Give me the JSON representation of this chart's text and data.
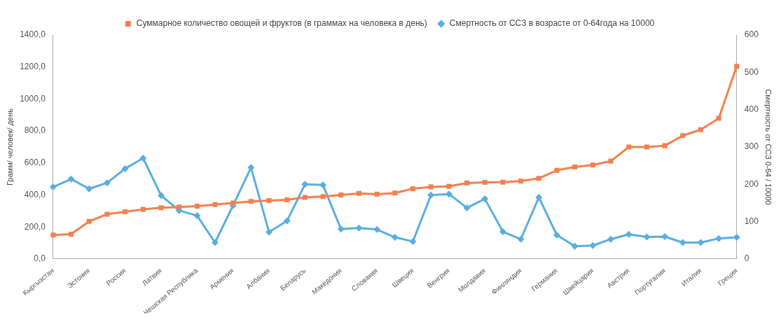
{
  "chart_data": {
    "type": "line",
    "categories": [
      "Кыргызстан",
      null,
      "Эстония",
      null,
      "Россия",
      null,
      "Латвия",
      null,
      "Чешская Республика",
      null,
      "Армения",
      null,
      "Албания",
      null,
      "Беларусь",
      null,
      "Македония",
      null,
      "Словакия",
      null,
      "Швеция",
      null,
      "Венгрия",
      null,
      "Молдавия",
      null,
      "Финляндия",
      null,
      "Германия",
      null,
      "Швейцария",
      null,
      "Австрия",
      null,
      "Португалия",
      null,
      "Италия",
      null,
      "Греция"
    ],
    "series": [
      {
        "name": "Суммарное количество овощей и фруктов (в граммах на человека в день)",
        "color": "#f4804d",
        "marker": "square",
        "values": [
          150,
          155,
          235,
          280,
          295,
          310,
          320,
          325,
          330,
          340,
          350,
          360,
          365,
          370,
          385,
          390,
          400,
          410,
          405,
          412,
          439,
          451,
          454,
          475,
          479,
          480,
          487,
          504,
          554,
          575,
          587,
          612,
          700,
          700,
          708,
          771,
          808,
          879,
          1204
        ]
      },
      {
        "name": "Смертность от ССЗ в возрасте от 0-64года на 10000",
        "color": "#5aaee0",
        "marker": "diamond",
        "axis": "y2",
        "values": [
          193,
          214,
          188,
          204,
          242,
          270,
          170,
          130,
          116,
          44,
          143,
          245,
          72,
          102,
          200,
          198,
          80,
          83,
          79,
          58,
          47,
          171,
          174,
          137,
          161,
          73,
          53,
          165,
          64,
          34,
          36,
          53,
          66,
          59,
          60,
          44,
          44,
          55,
          58
        ]
      }
    ],
    "ylabel": "Грамм/ человек/ день",
    "y2label": "Смертность от ССЗ 0-64 / 10000",
    "ylim": [
      0,
      1400
    ],
    "yticks": [
      {
        "value": 0,
        "label": "0,0"
      },
      {
        "value": 200,
        "label": "200,0"
      },
      {
        "value": 400,
        "label": "400,0"
      },
      {
        "value": 600,
        "label": "600,0"
      },
      {
        "value": 800,
        "label": "800,0"
      },
      {
        "value": 1000,
        "label": "1000,0"
      },
      {
        "value": 1200,
        "label": "1200,0"
      },
      {
        "value": 1400,
        "label": "1400,0"
      }
    ],
    "y2lim": [
      0,
      600
    ],
    "y2ticks": [
      0,
      100,
      200,
      300,
      400,
      500,
      600
    ],
    "grid": false,
    "legend": "top",
    "line_style": "solid"
  }
}
